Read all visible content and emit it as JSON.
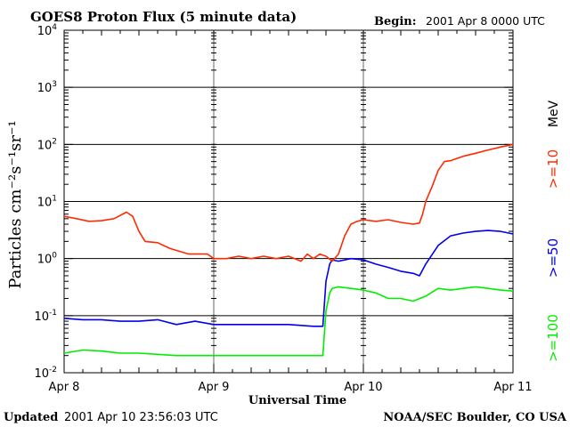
{
  "header": {
    "title": "GOES8 Proton Flux (5 minute data)",
    "begin_label": "Begin:",
    "begin_value": "2001 Apr 8 0000 UTC"
  },
  "footer": {
    "updated_label": "Updated",
    "updated_value": "2001 Apr 10 23:56:03 UTC",
    "credit": "NOAA/SEC Boulder, CO USA"
  },
  "chart_data": {
    "type": "line",
    "title": "GOES8 Proton Flux (5 minute data)",
    "xlabel": "Universal Time",
    "ylabel": "Particles cm⁻²s⁻¹sr⁻¹",
    "y_scale": "log",
    "ylim": [
      0.01,
      10000
    ],
    "xlim": [
      0,
      72
    ],
    "x_unit": "hours since 2001 Apr 8 0000 UTC",
    "x_ticks": [
      {
        "x": 0,
        "label": "Apr 8"
      },
      {
        "x": 24,
        "label": "Apr 9"
      },
      {
        "x": 48,
        "label": "Apr 10"
      },
      {
        "x": 72,
        "label": "Apr 11"
      }
    ],
    "y_ticks": [
      {
        "value": 0.01,
        "base": "10",
        "exp": "-2"
      },
      {
        "value": 0.1,
        "base": "10",
        "exp": "-1"
      },
      {
        "value": 1,
        "base": "10",
        "exp": "0"
      },
      {
        "value": 10,
        "base": "10",
        "exp": "1"
      },
      {
        "value": 100,
        "base": "10",
        "exp": "2"
      },
      {
        "value": 1000,
        "base": "10",
        "exp": "3"
      },
      {
        "value": 10000,
        "base": "10",
        "exp": "4"
      }
    ],
    "grid": true,
    "legend_placement": "right",
    "unit_label": "MeV",
    "series": [
      {
        "name": ">=10",
        "color": "#ff2a00",
        "x": [
          0,
          2,
          4,
          6,
          8,
          10,
          11,
          12,
          13,
          15,
          17,
          20,
          23,
          24,
          26,
          28,
          30,
          32,
          34,
          36,
          38,
          39,
          40,
          41,
          42,
          43,
          44,
          45,
          46,
          47,
          48,
          50,
          52,
          54,
          56,
          57,
          57.5,
          58,
          59,
          60,
          61,
          62,
          64,
          66,
          68,
          70,
          72
        ],
        "y": [
          5.5,
          5,
          4.5,
          4.6,
          5,
          6.5,
          5.5,
          3,
          2,
          1.9,
          1.5,
          1.2,
          1.2,
          1,
          1,
          1.1,
          1,
          1.1,
          1,
          1.1,
          0.9,
          1.2,
          1,
          1.2,
          1.1,
          0.9,
          1.2,
          2.5,
          4,
          4.5,
          4.8,
          4.5,
          4.8,
          4.3,
          4,
          4.2,
          6,
          10,
          18,
          35,
          50,
          52,
          62,
          70,
          80,
          90,
          100
        ]
      },
      {
        "name": ">=50",
        "color": "#0000ee",
        "x": [
          0,
          3,
          6,
          9,
          12,
          15,
          18,
          21,
          24,
          27,
          30,
          33,
          36,
          40,
          41.5,
          42,
          42.6,
          43,
          44,
          46,
          48,
          50,
          52,
          54,
          56,
          57,
          58,
          60,
          62,
          64,
          66,
          68,
          70,
          72
        ],
        "y": [
          0.09,
          0.085,
          0.085,
          0.08,
          0.08,
          0.085,
          0.07,
          0.08,
          0.07,
          0.07,
          0.07,
          0.07,
          0.07,
          0.065,
          0.065,
          0.4,
          0.8,
          0.95,
          0.9,
          1,
          0.95,
          0.8,
          0.7,
          0.6,
          0.55,
          0.5,
          0.8,
          1.7,
          2.5,
          2.8,
          3,
          3.1,
          3,
          2.7
        ]
      },
      {
        "name": ">=100",
        "color": "#00ee00",
        "x": [
          0,
          3,
          6,
          9,
          12,
          15,
          18,
          21,
          24,
          27,
          30,
          33,
          36,
          40,
          41.5,
          42,
          42.6,
          43,
          44,
          46,
          48,
          50,
          52,
          54,
          56,
          58,
          60,
          62,
          64,
          66,
          68,
          70,
          72
        ],
        "y": [
          0.022,
          0.025,
          0.024,
          0.022,
          0.022,
          0.021,
          0.02,
          0.02,
          0.02,
          0.02,
          0.02,
          0.02,
          0.02,
          0.02,
          0.02,
          0.12,
          0.25,
          0.3,
          0.32,
          0.3,
          0.28,
          0.25,
          0.2,
          0.2,
          0.18,
          0.22,
          0.3,
          0.28,
          0.3,
          0.32,
          0.3,
          0.28,
          0.27
        ]
      }
    ]
  }
}
